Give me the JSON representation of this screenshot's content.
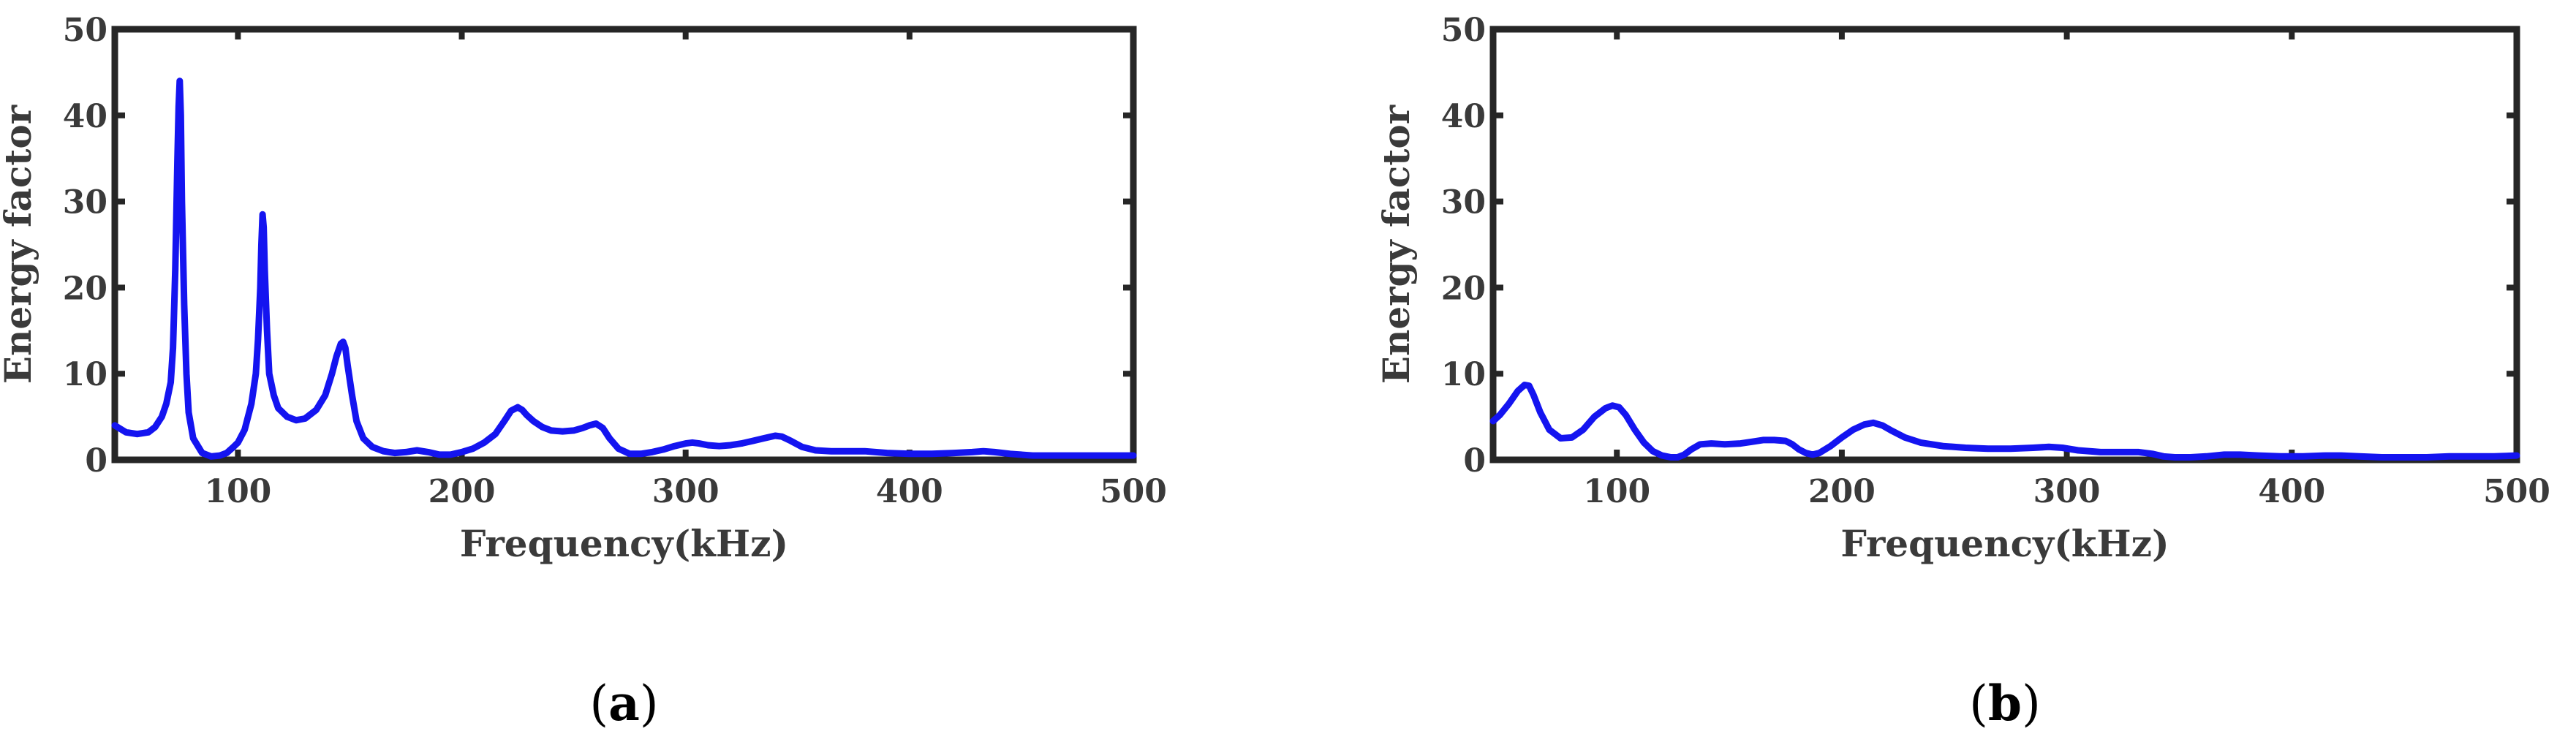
{
  "chart_data": [
    {
      "type": "line",
      "panel_label": "a",
      "title": "",
      "xlabel": "Frequency(kHz)",
      "ylabel": "Energy factor",
      "xlim": [
        45,
        500
      ],
      "ylim": [
        0,
        50
      ],
      "xticks": [
        100,
        200,
        300,
        400,
        500
      ],
      "yticks": [
        0,
        10,
        20,
        30,
        40,
        50
      ],
      "grid": false,
      "color": "#1414f0",
      "series": [
        {
          "x": [
            45,
            50,
            55,
            60,
            63,
            66,
            68,
            70,
            71,
            72,
            73,
            73.5,
            74,
            74.5,
            75,
            76,
            77,
            78,
            80,
            84,
            88,
            92,
            95,
            98,
            100,
            103,
            106,
            108,
            109,
            110,
            110.5,
            111,
            111.5,
            112,
            113,
            114,
            116,
            118,
            122,
            126,
            130,
            135,
            139,
            142,
            144,
            146,
            147,
            148,
            149,
            151,
            153,
            156,
            160,
            165,
            170,
            175,
            180,
            185,
            190,
            195,
            200,
            205,
            210,
            215,
            219,
            222,
            225,
            227,
            229,
            232,
            236,
            240,
            245,
            250,
            254,
            257,
            260,
            263,
            266,
            270,
            275,
            280,
            285,
            290,
            295,
            300,
            303,
            306,
            310,
            315,
            320,
            325,
            330,
            335,
            340,
            343,
            347,
            352,
            358,
            365,
            372,
            380,
            390,
            400,
            410,
            420,
            428,
            433,
            438,
            445,
            455,
            465,
            475,
            485,
            495,
            500
          ],
          "y": [
            4,
            3.2,
            3.0,
            3.2,
            3.8,
            5.0,
            6.5,
            9,
            13,
            22,
            35,
            41,
            44,
            40,
            30,
            18,
            10,
            5.5,
            2.5,
            0.8,
            0.4,
            0.5,
            0.8,
            1.5,
            2.0,
            3.5,
            6.5,
            10,
            14,
            20,
            25,
            28.5,
            27,
            22,
            15,
            10,
            7.5,
            6.0,
            5.0,
            4.6,
            4.8,
            5.8,
            7.5,
            10,
            12,
            13.5,
            13.7,
            13,
            11,
            7.5,
            4.5,
            2.5,
            1.5,
            1.0,
            0.8,
            0.9,
            1.1,
            0.9,
            0.6,
            0.6,
            0.9,
            1.3,
            2.0,
            3.0,
            4.5,
            5.7,
            6.1,
            5.8,
            5.2,
            4.5,
            3.8,
            3.4,
            3.3,
            3.4,
            3.7,
            4.0,
            4.2,
            3.7,
            2.5,
            1.3,
            0.7,
            0.7,
            0.9,
            1.2,
            1.6,
            1.9,
            2.0,
            1.9,
            1.7,
            1.6,
            1.7,
            1.9,
            2.2,
            2.5,
            2.8,
            2.7,
            2.2,
            1.5,
            1.1,
            1.0,
            1.0,
            1.0,
            0.8,
            0.7,
            0.7,
            0.8,
            0.9,
            1.0,
            0.9,
            0.7,
            0.5,
            0.5,
            0.5,
            0.5,
            0.5,
            0.5
          ]
        }
      ]
    },
    {
      "type": "line",
      "panel_label": "b",
      "title": "",
      "xlabel": "Frequency(kHz)",
      "ylabel": "Energy factor",
      "xlim": [
        45,
        500
      ],
      "ylim": [
        0,
        50
      ],
      "xticks": [
        100,
        200,
        300,
        400,
        500
      ],
      "yticks": [
        0,
        10,
        20,
        30,
        40,
        50
      ],
      "grid": false,
      "color": "#1414f0",
      "series": [
        {
          "x": [
            45,
            48,
            52,
            56,
            59,
            61,
            63,
            66,
            70,
            75,
            80,
            85,
            90,
            95,
            98,
            101,
            104,
            108,
            112,
            116,
            120,
            124,
            127,
            130,
            133,
            137,
            142,
            148,
            155,
            160,
            165,
            170,
            175,
            178,
            181,
            184,
            187,
            190,
            195,
            200,
            205,
            210,
            214,
            218,
            222,
            228,
            235,
            245,
            255,
            265,
            275,
            285,
            292,
            298,
            305,
            315,
            325,
            332,
            338,
            343,
            348,
            355,
            362,
            370,
            377,
            385,
            395,
            405,
            415,
            422,
            430,
            440,
            450,
            460,
            470,
            480,
            490,
            500
          ],
          "y": [
            4.5,
            5.2,
            6.5,
            8,
            8.7,
            8.6,
            7.5,
            5.5,
            3.5,
            2.5,
            2.6,
            3.5,
            5.0,
            6.0,
            6.3,
            6.1,
            5.2,
            3.5,
            2.0,
            1.0,
            0.5,
            0.3,
            0.3,
            0.6,
            1.2,
            1.8,
            1.9,
            1.8,
            1.9,
            2.1,
            2.3,
            2.3,
            2.2,
            1.8,
            1.2,
            0.8,
            0.6,
            0.8,
            1.6,
            2.6,
            3.5,
            4.1,
            4.3,
            4.0,
            3.4,
            2.6,
            2.0,
            1.6,
            1.4,
            1.3,
            1.3,
            1.4,
            1.5,
            1.4,
            1.1,
            0.9,
            0.9,
            0.9,
            0.7,
            0.4,
            0.3,
            0.3,
            0.4,
            0.6,
            0.6,
            0.5,
            0.4,
            0.4,
            0.5,
            0.5,
            0.4,
            0.3,
            0.3,
            0.3,
            0.4,
            0.4,
            0.4,
            0.5
          ]
        }
      ]
    }
  ]
}
